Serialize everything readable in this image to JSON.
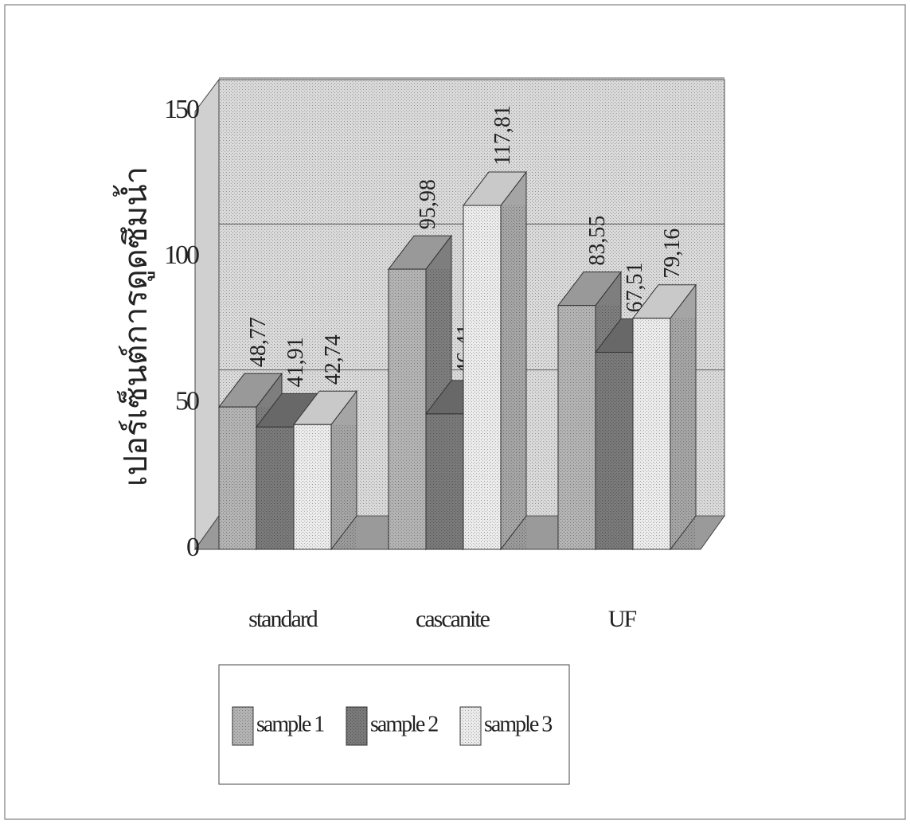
{
  "chart_data": {
    "type": "bar3d",
    "y_label": "เปอร์เซ็นต์การดูดซึมน้ำ",
    "categories": [
      "standard",
      "cascanite",
      "UF"
    ],
    "series": [
      {
        "name": "sample 1",
        "color": "#b4b4b4",
        "values": [
          48.77,
          95.98,
          83.55
        ],
        "value_labels": [
          "48,77",
          "95,98",
          "83,55"
        ]
      },
      {
        "name": "sample 2",
        "color": "#7a7a7a",
        "values": [
          41.91,
          46.41,
          67.51
        ],
        "value_labels": [
          "41,91",
          "46,41",
          "67,51"
        ]
      },
      {
        "name": "sample 3",
        "color": "#ececec",
        "values": [
          42.74,
          117.81,
          79.16
        ],
        "value_labels": [
          "42,74",
          "117,81",
          "79,16"
        ]
      }
    ],
    "ylim": [
      0,
      150
    ],
    "yticks": [
      0,
      50,
      100,
      150
    ],
    "grid": true
  }
}
